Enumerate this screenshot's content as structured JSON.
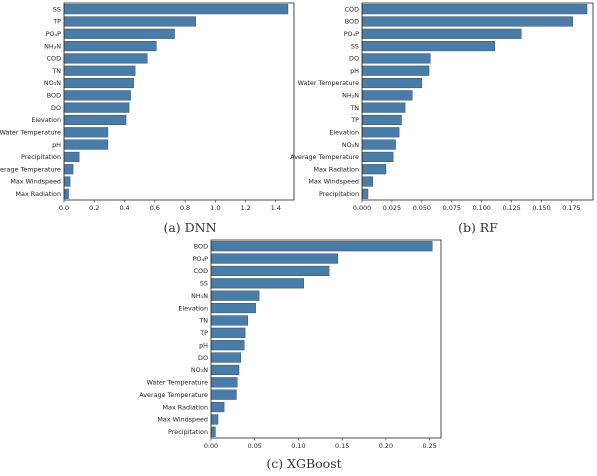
{
  "colors": {
    "bar": "#4a7ca8",
    "bar_edge": "#2f4f6a",
    "axis": "#222222"
  },
  "chart_data": [
    {
      "type": "bar",
      "orientation": "horizontal",
      "caption": "(a) DNN",
      "categories": [
        "SS",
        "TP",
        "PO₄P",
        "NH₃N",
        "COD",
        "TN",
        "NO₃N",
        "BOD",
        "DO",
        "Elevation",
        "Water Temperature",
        "pH",
        "Precipitation",
        "Average Temperature",
        "Max Windspeed",
        "Max Radiation"
      ],
      "values": [
        1.48,
        0.87,
        0.73,
        0.61,
        0.55,
        0.47,
        0.46,
        0.44,
        0.43,
        0.41,
        0.29,
        0.29,
        0.1,
        0.06,
        0.04,
        0.03
      ],
      "xticks": [
        "0.0",
        "0.2",
        "0.4",
        "0.6",
        "0.8",
        "1.0",
        "1.2",
        "1.4"
      ],
      "xtick_values": [
        0,
        0.2,
        0.4,
        0.6,
        0.8,
        1.0,
        1.2,
        1.4
      ],
      "xlim": [
        0,
        1.52
      ]
    },
    {
      "type": "bar",
      "orientation": "horizontal",
      "caption": "(b) RF",
      "categories": [
        "COD",
        "BOD",
        "PO₄P",
        "SS",
        "DO",
        "pH",
        "Water Temperature",
        "NH₃N",
        "TN",
        "TP",
        "Elevation",
        "NO₃N",
        "Average Temperature",
        "Max Radiation",
        "Max Windspeed",
        "Precipitation"
      ],
      "values": [
        0.188,
        0.176,
        0.133,
        0.111,
        0.057,
        0.056,
        0.05,
        0.042,
        0.036,
        0.033,
        0.031,
        0.028,
        0.026,
        0.02,
        0.009,
        0.005
      ],
      "xticks": [
        "0.000",
        "0.025",
        "0.050",
        "0.075",
        "0.100",
        "0.125",
        "0.150",
        "0.175"
      ],
      "xtick_values": [
        0,
        0.025,
        0.05,
        0.075,
        0.1,
        0.125,
        0.15,
        0.175
      ],
      "xlim": [
        0,
        0.193
      ]
    },
    {
      "type": "bar",
      "orientation": "horizontal",
      "caption": "(c) XGBoost",
      "categories": [
        "BOD",
        "PO₄P",
        "COD",
        "SS",
        "NH₃N",
        "Elevation",
        "TN",
        "TP",
        "pH",
        "DO",
        "NO₃N",
        "Water Temperature",
        "Average Temperature",
        "Max Radiation",
        "Max Windspeed",
        "Precipitation"
      ],
      "values": [
        0.253,
        0.145,
        0.135,
        0.106,
        0.055,
        0.051,
        0.042,
        0.039,
        0.038,
        0.034,
        0.032,
        0.03,
        0.029,
        0.015,
        0.008,
        0.005
      ],
      "xticks": [
        "0.00",
        "0.05",
        "0.10",
        "0.15",
        "0.20",
        "0.25"
      ],
      "xtick_values": [
        0,
        0.05,
        0.1,
        0.15,
        0.2,
        0.25
      ],
      "xlim": [
        0,
        0.263
      ]
    }
  ]
}
